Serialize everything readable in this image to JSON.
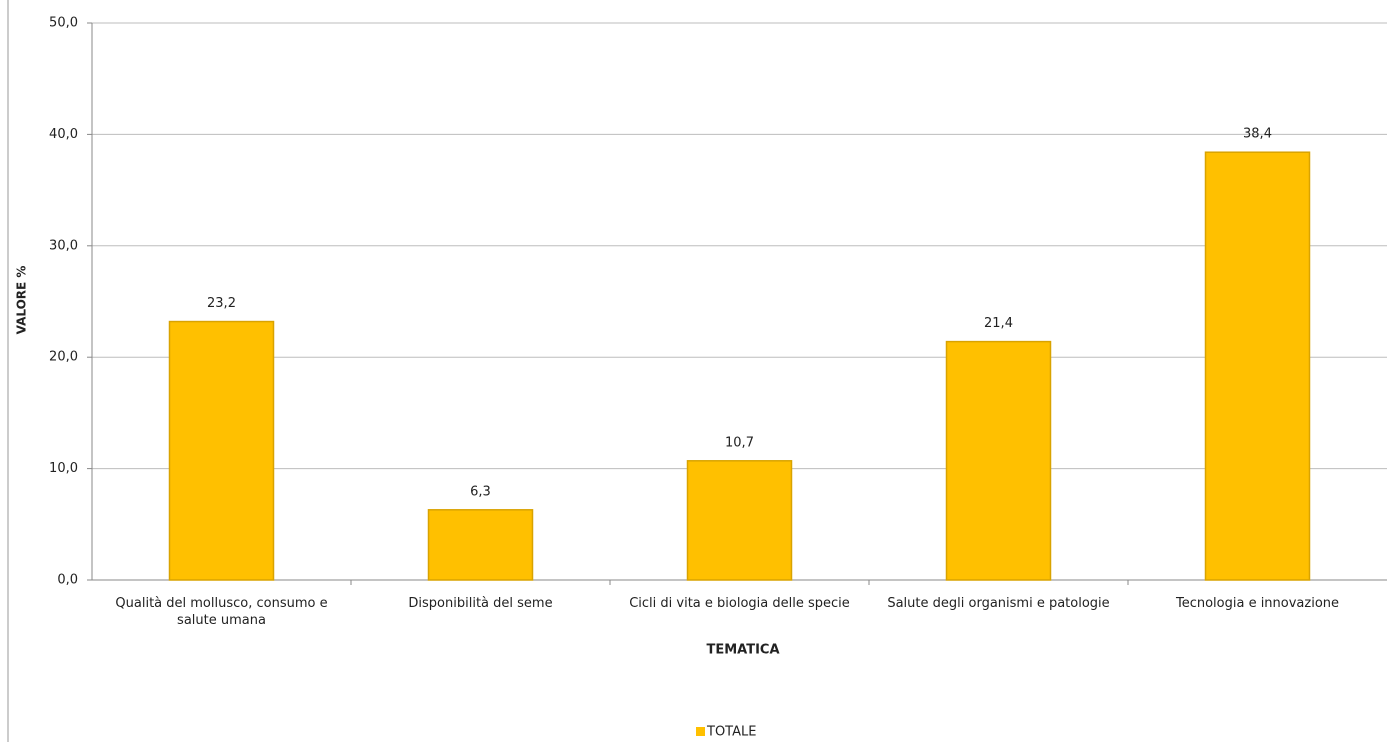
{
  "chart_data": {
    "type": "bar",
    "categories": [
      "Qualità del mollusco, consumo e salute umana",
      "Disponibilità del seme",
      "Cicli di vita e biologia delle specie",
      "Salute degli organismi e patologie",
      "Tecnologia e innovazione"
    ],
    "series": [
      {
        "name": "TOTALE",
        "color": "#ffc000",
        "values": [
          23.2,
          6.3,
          10.7,
          21.4,
          38.4
        ],
        "value_labels": [
          "23,2",
          "6,3",
          "10,7",
          "21,4",
          "38,4"
        ]
      }
    ],
    "x_label": "TEMATICA",
    "y_label": "VALORE %",
    "ylim": [
      0,
      50
    ],
    "yticks": [
      {
        "value": 0,
        "label": "0,0"
      },
      {
        "value": 10,
        "label": "10,0"
      },
      {
        "value": 20,
        "label": "20,0"
      },
      {
        "value": 30,
        "label": "30,0"
      },
      {
        "value": 40,
        "label": "40,0"
      },
      {
        "value": 50,
        "label": "50,0"
      }
    ],
    "grid": true,
    "legend": "bottom"
  }
}
